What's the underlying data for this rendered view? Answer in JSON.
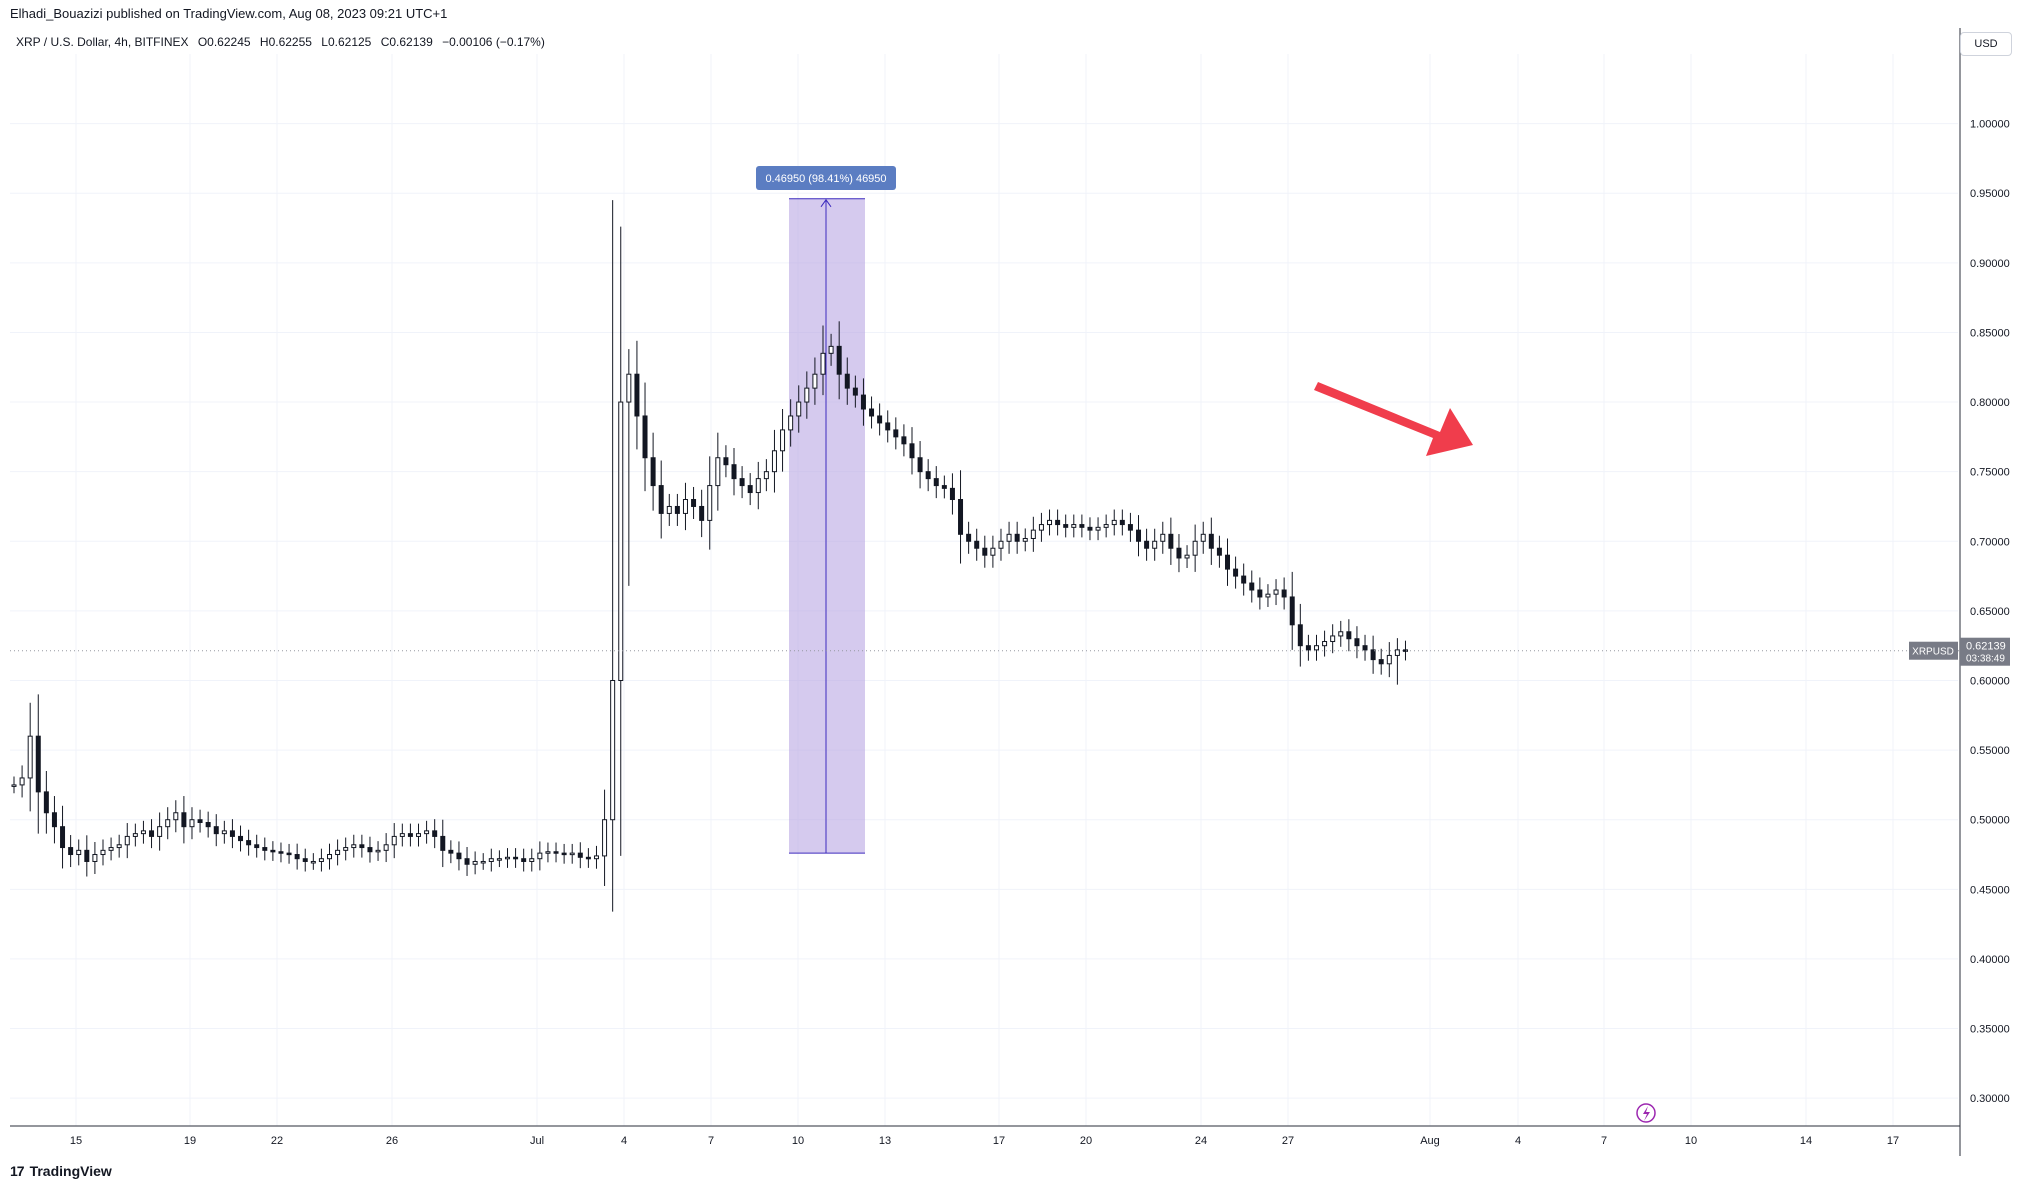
{
  "header": {
    "published_line": "Elhadi_Bouazizi published on TradingView.com, Aug 08, 2023 09:21 UTC+1",
    "symbol_line": "XRP / U.S. Dollar, 4h, BITFINEX",
    "ohlc": {
      "o": "O0.62245",
      "h": "H0.62255",
      "l": "L0.62125",
      "c": "C0.62139",
      "chg": "−0.00106 (−0.17%)"
    }
  },
  "currency_label": "USD",
  "footer": {
    "brand": "TradingView",
    "logo": "17"
  },
  "colors": {
    "candle": "#131722",
    "measure_fill": "#b9a6e3",
    "measure_line": "#3d2bbd",
    "measure_label": "#5b7dc2",
    "arrow": "#f03d4c",
    "price_tag": "#787b86",
    "flash": "#9c27b0"
  },
  "chart_data": {
    "type": "candlestick",
    "interval": "4h",
    "ylim": [
      0.28,
      1.05
    ],
    "y_ticks": [
      "0.30000",
      "0.35000",
      "0.40000",
      "0.45000",
      "0.50000",
      "0.55000",
      "0.60000",
      "0.65000",
      "0.70000",
      "0.75000",
      "0.80000",
      "0.85000",
      "0.90000",
      "0.95000",
      "1.00000"
    ],
    "x_ticks": [
      "15",
      "19",
      "22",
      "26",
      "Jul",
      "4",
      "7",
      "10",
      "13",
      "17",
      "20",
      "24",
      "27",
      "Aug",
      "4",
      "7",
      "10",
      "14",
      "17"
    ],
    "grid": true,
    "current_price": {
      "symbol": "XRPUSD",
      "price": "0.62139",
      "countdown": "03:38:49"
    },
    "measure": {
      "label": "0.46950 (98.41%) 46950",
      "from": 0.476,
      "to": 0.946
    },
    "annotation": "red-down-arrow",
    "path": [
      [
        0,
        0.525
      ],
      [
        1,
        0.53
      ],
      [
        2,
        0.56
      ],
      [
        3,
        0.52
      ],
      [
        4,
        0.505
      ],
      [
        5,
        0.495
      ],
      [
        6,
        0.48
      ],
      [
        7,
        0.475
      ],
      [
        8,
        0.478
      ],
      [
        9,
        0.47
      ],
      [
        10,
        0.475
      ],
      [
        11,
        0.478
      ],
      [
        12,
        0.48
      ],
      [
        13,
        0.482
      ],
      [
        14,
        0.488
      ],
      [
        15,
        0.49
      ],
      [
        16,
        0.492
      ],
      [
        17,
        0.488
      ],
      [
        18,
        0.495
      ],
      [
        19,
        0.5
      ],
      [
        20,
        0.505
      ],
      [
        21,
        0.495
      ],
      [
        22,
        0.5
      ],
      [
        23,
        0.498
      ],
      [
        24,
        0.495
      ],
      [
        25,
        0.49
      ],
      [
        26,
        0.492
      ],
      [
        27,
        0.488
      ],
      [
        28,
        0.485
      ],
      [
        29,
        0.482
      ],
      [
        30,
        0.48
      ],
      [
        31,
        0.478
      ],
      [
        32,
        0.477
      ],
      [
        33,
        0.476
      ],
      [
        34,
        0.475
      ],
      [
        35,
        0.472
      ],
      [
        36,
        0.47
      ],
      [
        37,
        0.47
      ],
      [
        38,
        0.472
      ],
      [
        39,
        0.475
      ],
      [
        40,
        0.478
      ],
      [
        41,
        0.48
      ],
      [
        42,
        0.482
      ],
      [
        43,
        0.48
      ],
      [
        44,
        0.477
      ],
      [
        45,
        0.478
      ],
      [
        46,
        0.482
      ],
      [
        47,
        0.488
      ],
      [
        48,
        0.49
      ],
      [
        49,
        0.488
      ],
      [
        50,
        0.49
      ],
      [
        51,
        0.492
      ],
      [
        52,
        0.488
      ],
      [
        53,
        0.478
      ],
      [
        54,
        0.476
      ],
      [
        55,
        0.472
      ],
      [
        56,
        0.468
      ],
      [
        57,
        0.47
      ],
      [
        58,
        0.47
      ],
      [
        59,
        0.472
      ],
      [
        60,
        0.472
      ],
      [
        61,
        0.473
      ],
      [
        62,
        0.472
      ],
      [
        63,
        0.47
      ],
      [
        64,
        0.472
      ],
      [
        65,
        0.476
      ],
      [
        66,
        0.477
      ],
      [
        67,
        0.476
      ],
      [
        68,
        0.475
      ],
      [
        69,
        0.476
      ],
      [
        70,
        0.473
      ],
      [
        71,
        0.472
      ],
      [
        72,
        0.474
      ],
      [
        73,
        0.5
      ],
      [
        74,
        0.6
      ],
      [
        75,
        0.8
      ],
      [
        76,
        0.82
      ],
      [
        77,
        0.79
      ],
      [
        78,
        0.76
      ],
      [
        79,
        0.74
      ],
      [
        80,
        0.72
      ],
      [
        81,
        0.725
      ],
      [
        82,
        0.72
      ],
      [
        83,
        0.73
      ],
      [
        84,
        0.725
      ],
      [
        85,
        0.715
      ],
      [
        86,
        0.74
      ],
      [
        87,
        0.76
      ],
      [
        88,
        0.755
      ],
      [
        89,
        0.745
      ],
      [
        90,
        0.74
      ],
      [
        91,
        0.735
      ],
      [
        92,
        0.745
      ],
      [
        93,
        0.75
      ],
      [
        94,
        0.765
      ],
      [
        95,
        0.78
      ],
      [
        96,
        0.79
      ],
      [
        97,
        0.8
      ],
      [
        98,
        0.81
      ],
      [
        99,
        0.82
      ],
      [
        100,
        0.835
      ],
      [
        101,
        0.84
      ],
      [
        102,
        0.82
      ],
      [
        103,
        0.81
      ],
      [
        104,
        0.805
      ],
      [
        105,
        0.795
      ],
      [
        106,
        0.79
      ],
      [
        107,
        0.785
      ],
      [
        108,
        0.78
      ],
      [
        109,
        0.775
      ],
      [
        110,
        0.77
      ],
      [
        111,
        0.76
      ],
      [
        112,
        0.75
      ],
      [
        113,
        0.745
      ],
      [
        114,
        0.74
      ],
      [
        115,
        0.738
      ],
      [
        116,
        0.73
      ],
      [
        117,
        0.705
      ],
      [
        118,
        0.7
      ],
      [
        119,
        0.695
      ],
      [
        120,
        0.69
      ],
      [
        121,
        0.695
      ],
      [
        122,
        0.7
      ],
      [
        123,
        0.705
      ],
      [
        124,
        0.7
      ],
      [
        125,
        0.702
      ],
      [
        126,
        0.708
      ],
      [
        127,
        0.712
      ],
      [
        128,
        0.715
      ],
      [
        129,
        0.712
      ],
      [
        130,
        0.71
      ],
      [
        131,
        0.712
      ],
      [
        132,
        0.71
      ],
      [
        133,
        0.708
      ],
      [
        134,
        0.71
      ],
      [
        135,
        0.712
      ],
      [
        136,
        0.715
      ],
      [
        137,
        0.712
      ],
      [
        138,
        0.708
      ],
      [
        139,
        0.7
      ],
      [
        140,
        0.695
      ],
      [
        141,
        0.7
      ],
      [
        142,
        0.705
      ],
      [
        143,
        0.695
      ],
      [
        144,
        0.688
      ],
      [
        145,
        0.69
      ],
      [
        146,
        0.7
      ],
      [
        147,
        0.705
      ],
      [
        148,
        0.695
      ],
      [
        149,
        0.69
      ],
      [
        150,
        0.68
      ],
      [
        151,
        0.675
      ],
      [
        152,
        0.67
      ],
      [
        153,
        0.665
      ],
      [
        154,
        0.66
      ],
      [
        155,
        0.662
      ],
      [
        156,
        0.665
      ],
      [
        157,
        0.66
      ],
      [
        158,
        0.64
      ],
      [
        159,
        0.625
      ],
      [
        160,
        0.622
      ],
      [
        161,
        0.625
      ],
      [
        162,
        0.628
      ],
      [
        163,
        0.632
      ],
      [
        164,
        0.635
      ],
      [
        165,
        0.63
      ],
      [
        166,
        0.625
      ],
      [
        167,
        0.622
      ],
      [
        168,
        0.615
      ],
      [
        169,
        0.612
      ],
      [
        170,
        0.618
      ],
      [
        171,
        0.622
      ],
      [
        172,
        0.621
      ]
    ]
  }
}
